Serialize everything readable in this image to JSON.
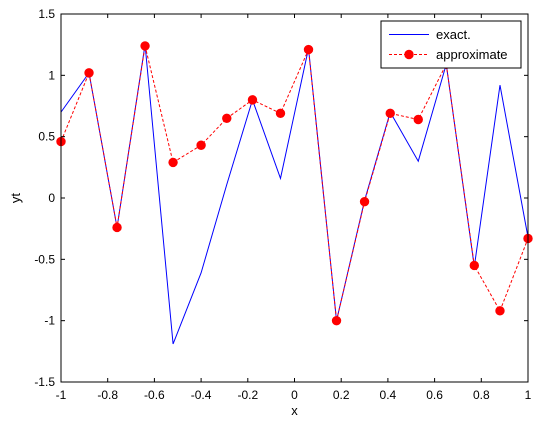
{
  "chart_data": {
    "type": "line",
    "xlabel": "x",
    "ylabel": "yt",
    "xlim": [
      -1,
      1
    ],
    "ylim": [
      -1.5,
      1.5
    ],
    "x_ticks": [
      -1,
      -0.8,
      -0.6,
      -0.4,
      -0.2,
      0,
      0.2,
      0.4,
      0.6,
      0.8,
      1
    ],
    "x_tick_labels": [
      "-1",
      "-0.8",
      "-0.6",
      "-0.4",
      "-0.2",
      "0",
      "0.2",
      "0.4",
      "0.6",
      "0.8",
      "1"
    ],
    "y_ticks": [
      -1.5,
      -1,
      -0.5,
      0,
      0.5,
      1,
      1.5
    ],
    "y_tick_labels": [
      "-1.5",
      "-1",
      "-0.5",
      "0",
      "0.5",
      "1",
      "1.5"
    ],
    "grid": false,
    "legend_position": "top-right",
    "series": [
      {
        "name": "exact.",
        "color": "#0000ff",
        "line_style": "solid",
        "marker": "none",
        "x": [
          -1,
          -0.88,
          -0.76,
          -0.64,
          -0.52,
          -0.4,
          -0.29,
          -0.18,
          -0.06,
          0.06,
          0.18,
          0.3,
          0.41,
          0.53,
          0.65,
          0.77,
          0.88,
          1
        ],
        "y": [
          0.7,
          1.02,
          -0.24,
          1.25,
          -1.19,
          -0.61,
          0.11,
          0.8,
          0.16,
          1.22,
          -1.0,
          -0.02,
          0.7,
          0.3,
          1.09,
          -0.56,
          0.92,
          -0.32
        ]
      },
      {
        "name": "approximate",
        "color": "#ff0000",
        "line_style": "dashed",
        "marker": "circle",
        "x": [
          -1,
          -0.88,
          -0.76,
          -0.64,
          -0.52,
          -0.4,
          -0.29,
          -0.18,
          -0.06,
          0.06,
          0.18,
          0.3,
          0.41,
          0.53,
          0.65,
          0.77,
          0.88,
          1
        ],
        "y": [
          0.46,
          1.02,
          -0.24,
          1.24,
          0.29,
          0.43,
          0.65,
          0.8,
          0.69,
          1.21,
          -1.0,
          -0.03,
          0.69,
          0.64,
          1.09,
          -0.55,
          -0.92,
          -0.33
        ]
      }
    ]
  }
}
